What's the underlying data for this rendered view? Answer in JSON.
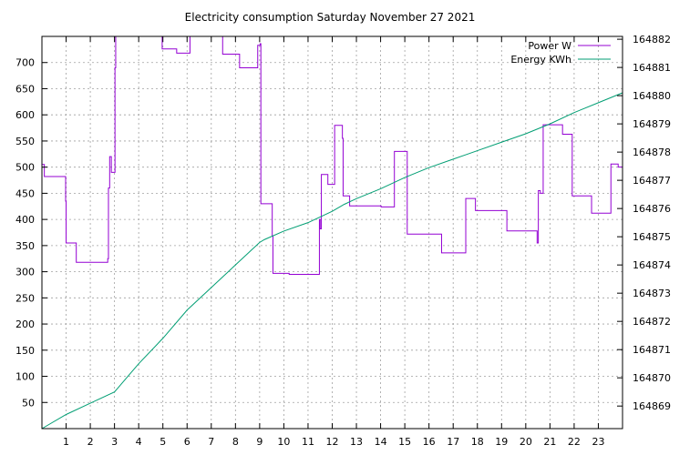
{
  "chart_data": {
    "type": "line",
    "title": "Electricity consumption Saturday November 27 2021",
    "xlabel": "",
    "ylabel": "",
    "y2label": "",
    "xlim": [
      0,
      24
    ],
    "ylim": [
      0,
      750
    ],
    "y2lim": [
      164868.2,
      164882.1
    ],
    "x_ticks": [
      1,
      2,
      3,
      4,
      5,
      6,
      7,
      8,
      9,
      10,
      11,
      12,
      13,
      14,
      15,
      16,
      17,
      18,
      19,
      20,
      21,
      22,
      23
    ],
    "y_ticks": [
      50,
      100,
      150,
      200,
      250,
      300,
      350,
      400,
      450,
      500,
      550,
      600,
      650,
      700
    ],
    "y2_ticks": [
      164869,
      164870,
      164871,
      164872,
      164873,
      164874,
      164875,
      164876,
      164877,
      164878,
      164879,
      164880,
      164881,
      164882
    ],
    "grid": true,
    "legend_position": "top-right",
    "series": [
      {
        "name": "Power W",
        "axis": "left",
        "step": true,
        "color": "#9400d3",
        "points": [
          [
            0,
            505
          ],
          [
            0.1,
            482
          ],
          [
            0.95,
            482
          ],
          [
            0.98,
            435
          ],
          [
            1.0,
            355
          ],
          [
            1.4,
            355
          ],
          [
            1.42,
            318
          ],
          [
            2.7,
            318
          ],
          [
            2.72,
            325
          ],
          [
            2.75,
            460
          ],
          [
            2.8,
            520
          ],
          [
            2.87,
            490
          ],
          [
            3.0,
            490
          ],
          [
            3.02,
            690
          ],
          [
            3.05,
            750
          ],
          [
            3.07,
            750
          ],
          [
            4.95,
            750
          ],
          [
            4.97,
            726
          ],
          [
            5.55,
            726
          ],
          [
            5.57,
            718
          ],
          [
            6.1,
            718
          ],
          [
            6.12,
            750
          ],
          [
            7.45,
            750
          ],
          [
            7.47,
            716
          ],
          [
            8.15,
            716
          ],
          [
            8.17,
            690
          ],
          [
            8.9,
            690
          ],
          [
            8.92,
            733
          ],
          [
            9.02,
            736
          ],
          [
            9.05,
            430
          ],
          [
            9.5,
            430
          ],
          [
            9.52,
            368
          ],
          [
            9.55,
            297
          ],
          [
            10.2,
            297
          ],
          [
            10.22,
            295
          ],
          [
            11.45,
            295
          ],
          [
            11.47,
            400
          ],
          [
            11.5,
            382
          ],
          [
            11.55,
            486
          ],
          [
            11.8,
            486
          ],
          [
            11.82,
            467
          ],
          [
            12.08,
            467
          ],
          [
            12.1,
            580
          ],
          [
            12.4,
            580
          ],
          [
            12.42,
            555
          ],
          [
            12.45,
            445
          ],
          [
            12.7,
            445
          ],
          [
            12.72,
            426
          ],
          [
            14.0,
            426
          ],
          [
            14.02,
            424
          ],
          [
            14.55,
            424
          ],
          [
            14.57,
            530
          ],
          [
            15.08,
            530
          ],
          [
            15.1,
            372
          ],
          [
            16.5,
            372
          ],
          [
            16.52,
            336
          ],
          [
            17.5,
            336
          ],
          [
            17.52,
            440
          ],
          [
            17.9,
            440
          ],
          [
            17.92,
            417
          ],
          [
            19.2,
            417
          ],
          [
            19.22,
            378
          ],
          [
            20.45,
            378
          ],
          [
            20.47,
            355
          ],
          [
            20.52,
            455
          ],
          [
            20.6,
            450
          ],
          [
            20.7,
            450
          ],
          [
            20.72,
            581
          ],
          [
            21.5,
            581
          ],
          [
            21.52,
            563
          ],
          [
            21.9,
            563
          ],
          [
            21.92,
            445
          ],
          [
            22.7,
            445
          ],
          [
            22.72,
            412
          ],
          [
            23.5,
            412
          ],
          [
            23.52,
            506
          ],
          [
            23.8,
            506
          ],
          [
            23.82,
            500
          ],
          [
            24.0,
            500
          ]
        ]
      },
      {
        "name": "Energy KWh",
        "axis": "right",
        "step": false,
        "color": "#009e73",
        "points": [
          [
            0,
            164868.2
          ],
          [
            1.0,
            164868.7
          ],
          [
            2.0,
            164869.1
          ],
          [
            3.0,
            164869.5
          ],
          [
            3.5,
            164870.0
          ],
          [
            4.0,
            164870.5
          ],
          [
            5.0,
            164871.4
          ],
          [
            6.0,
            164872.4
          ],
          [
            7.0,
            164873.2
          ],
          [
            8.0,
            164874.0
          ],
          [
            9.0,
            164874.8
          ],
          [
            9.2,
            164874.9
          ],
          [
            10.0,
            164875.2
          ],
          [
            11.0,
            164875.5
          ],
          [
            11.5,
            164875.7
          ],
          [
            12.0,
            164875.9
          ],
          [
            12.5,
            164876.15
          ],
          [
            13.0,
            164876.35
          ],
          [
            14.0,
            164876.7
          ],
          [
            15.0,
            164877.1
          ],
          [
            16.0,
            164877.45
          ],
          [
            17.0,
            164877.75
          ],
          [
            18.0,
            164878.05
          ],
          [
            19.0,
            164878.35
          ],
          [
            20.0,
            164878.65
          ],
          [
            21.0,
            164879.0
          ],
          [
            22.0,
            164879.4
          ],
          [
            23.0,
            164879.75
          ],
          [
            24.0,
            164880.1
          ]
        ]
      }
    ]
  }
}
